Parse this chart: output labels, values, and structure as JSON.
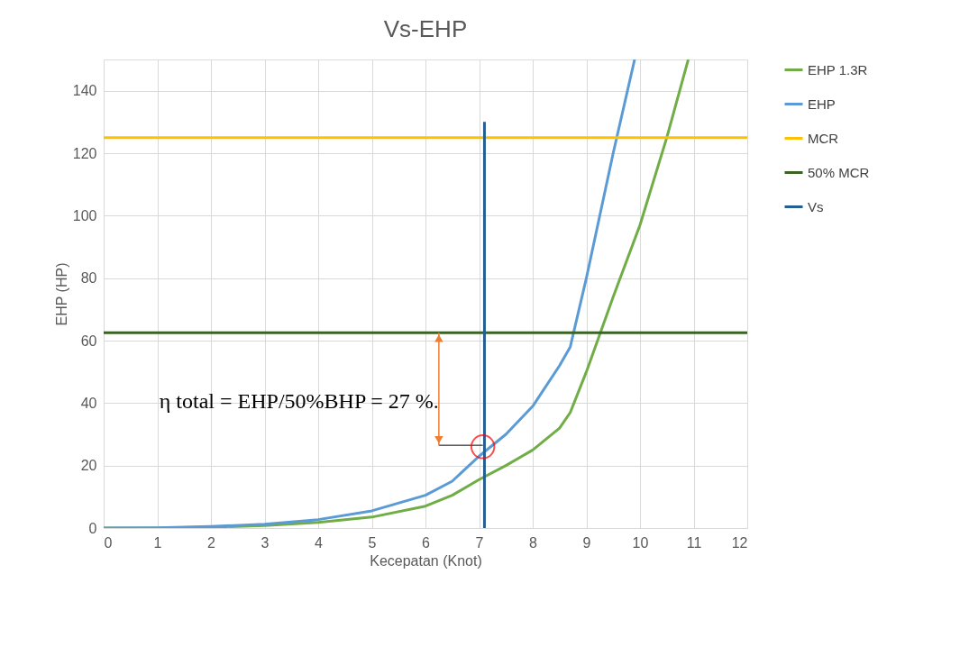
{
  "chart_data": {
    "type": "line",
    "title": "Vs-EHP",
    "xlabel": "Kecepatan (Knot)",
    "ylabel": "EHP (HP)",
    "xlim": [
      0,
      12
    ],
    "xticks": [
      0,
      1,
      2,
      3,
      4,
      5,
      6,
      7,
      8,
      9,
      10,
      11,
      12
    ],
    "ylim": [
      0,
      150
    ],
    "yticks": [
      0,
      20,
      40,
      60,
      80,
      100,
      120,
      140
    ],
    "grid": true,
    "legend": "right",
    "marker": "none",
    "line_style": "solid",
    "series": [
      {
        "name": "EHP 1.3R",
        "color": "#70ad47",
        "x": [
          0,
          1,
          2,
          3,
          4,
          5,
          6,
          6.5,
          7,
          7.5,
          8,
          8.5,
          8.7,
          9,
          9.5,
          10,
          10.5,
          10.9
        ],
        "values": [
          0,
          0,
          0.3,
          0.8,
          1.8,
          3.5,
          7,
          10.5,
          15.5,
          20,
          25,
          32,
          37,
          50,
          74,
          97,
          125,
          150
        ]
      },
      {
        "name": "EHP",
        "color": "#5b9bd5",
        "x": [
          0,
          1,
          2,
          3,
          4,
          5,
          6,
          6.5,
          7,
          7.5,
          8,
          8.5,
          8.7,
          9,
          9.5,
          9.9
        ],
        "values": [
          0,
          0.1,
          0.5,
          1.2,
          2.7,
          5.5,
          10.5,
          15,
          23,
          30,
          39,
          52,
          58,
          80,
          120,
          150
        ]
      },
      {
        "name": "MCR",
        "color": "#ffc000",
        "x": [
          0,
          12
        ],
        "values": [
          125,
          125
        ]
      },
      {
        "name": "50% MCR",
        "color": "#3b6323",
        "x": [
          0,
          12
        ],
        "values": [
          62.5,
          62.5
        ]
      },
      {
        "name": "Vs",
        "color": "#255e91",
        "x": [
          7.1,
          7.1
        ],
        "values": [
          0,
          130
        ]
      }
    ],
    "annotations": [
      {
        "text": "η total = EHP/50%BHP = 27 %.",
        "x": 7.07,
        "y": 26
      }
    ]
  }
}
